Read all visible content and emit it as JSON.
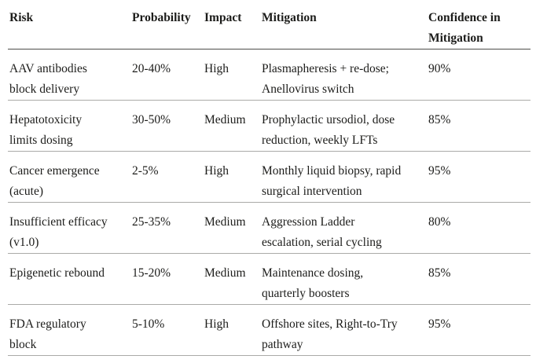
{
  "table": {
    "columns": [
      "Risk",
      "Probability",
      "Impact",
      "Mitigation",
      "Confidence in Mitigation"
    ],
    "rows": [
      {
        "risk": "AAV antibodies\nblock delivery",
        "probability": "20-40%",
        "impact": "High",
        "mitigation": "Plasmapheresis + re-dose;\nAnellovirus switch",
        "confidence": "90%"
      },
      {
        "risk": "Hepatotoxicity\nlimits dosing",
        "probability": "30-50%",
        "impact": "Medium",
        "mitigation": "Prophylactic ursodiol, dose\nreduction, weekly LFTs",
        "confidence": "85%"
      },
      {
        "risk": "Cancer emergence\n(acute)",
        "probability": "2-5%",
        "impact": "High",
        "mitigation": "Monthly liquid biopsy, rapid\nsurgical intervention",
        "confidence": "95%"
      },
      {
        "risk": "Insufficient efficacy\n(v1.0)",
        "probability": "25-35%",
        "impact": "Medium",
        "mitigation": "Aggression Ladder\nescalation, serial cycling",
        "confidence": "80%"
      },
      {
        "risk": "Epigenetic rebound",
        "probability": "15-20%",
        "impact": "Medium",
        "mitigation": "Maintenance dosing,\nquarterly boosters",
        "confidence": "85%"
      },
      {
        "risk": "FDA regulatory\nblock",
        "probability": "5-10%",
        "impact": "High",
        "mitigation": "Offshore sites, Right-to-Try\npathway",
        "confidence": "95%"
      }
    ]
  },
  "colors": {
    "text": "#1c1c1a",
    "header_rule": "#4d4d4b",
    "row_rule": "#aaaaa8",
    "background": "#ffffff"
  }
}
